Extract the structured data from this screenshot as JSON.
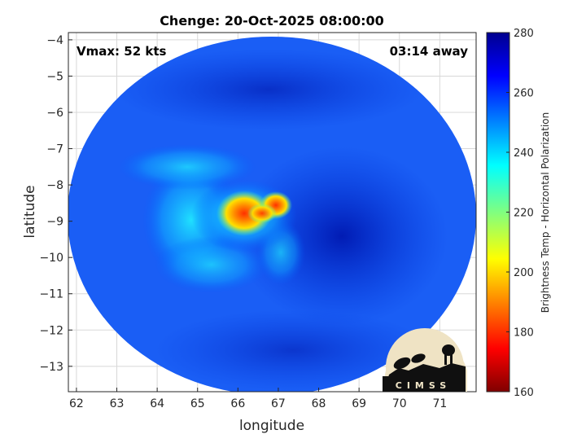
{
  "chart_data": {
    "type": "heatmap",
    "title": "Chenge: 20-Oct-2025 08:00:00",
    "xlabel": "longitude",
    "ylabel": "latitude",
    "xlim": [
      61.8,
      71.9
    ],
    "ylim": [
      -13.7,
      -3.8
    ],
    "xticks": [
      62,
      63,
      64,
      65,
      66,
      67,
      68,
      69,
      70,
      71
    ],
    "yticks": [
      -4,
      -5,
      -6,
      -7,
      -8,
      -9,
      -10,
      -11,
      -12,
      -13
    ],
    "grid": true,
    "annotations": {
      "top_left": "Vmax: 52 kts",
      "top_right": "03:14 away"
    },
    "colorbar": {
      "label": "Brightness Temp - Horizontal Polarization",
      "range": [
        160,
        280
      ],
      "ticks": [
        160,
        180,
        200,
        220,
        240,
        260,
        280
      ]
    },
    "swath": {
      "shape": "ellipse",
      "center_lon": 66.8,
      "center_lat": -8.6,
      "background_tb": 258
    },
    "cold_core": {
      "center_lon": 66.2,
      "center_lat": -8.9,
      "min_tb": 182
    },
    "logo_text": "CIMSS"
  }
}
